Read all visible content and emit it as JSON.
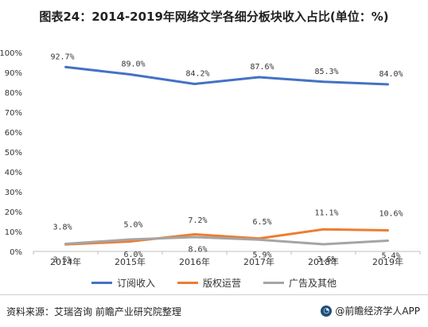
{
  "title": "图表24：2014-2019年网络文学各细分板块收入占比(单位：%)",
  "chart_data": {
    "type": "line",
    "categories": [
      "2014年",
      "2015年",
      "2016年",
      "2017年",
      "2018年",
      "2019年"
    ],
    "ylim": [
      0,
      100
    ],
    "yticks": [
      "0%",
      "10%",
      "20%",
      "30%",
      "40%",
      "50%",
      "60%",
      "70%",
      "80%",
      "90%",
      "100%"
    ],
    "grid": false,
    "legend_position": "bottom",
    "series": [
      {
        "name": "订阅收入",
        "color": "#4472c4",
        "values": [
          92.7,
          89.0,
          84.2,
          87.6,
          85.3,
          84.0
        ],
        "labels": [
          "92.7%",
          "89.0%",
          "84.2%",
          "87.6%",
          "85.3%",
          "84.0%"
        ]
      },
      {
        "name": "版权运营",
        "color": "#ed7d31",
        "values": [
          3.5,
          5.0,
          8.6,
          6.5,
          11.1,
          10.6
        ],
        "labels": [
          "3.5%",
          "5.0%",
          "8.6%",
          "6.5%",
          "11.1%",
          "10.6%"
        ]
      },
      {
        "name": "广告及其他",
        "color": "#a5a5a5",
        "values": [
          3.8,
          6.0,
          7.2,
          5.9,
          3.6,
          5.4
        ],
        "labels": [
          "3.8%",
          "6.0%",
          "7.2%",
          "5.9%",
          "3.6%",
          "5.4%"
        ]
      }
    ]
  },
  "footer": {
    "source": "资料来源：艾瑞咨询 前瞻产业研究院整理",
    "brand": "@前瞻经济学人APP"
  }
}
